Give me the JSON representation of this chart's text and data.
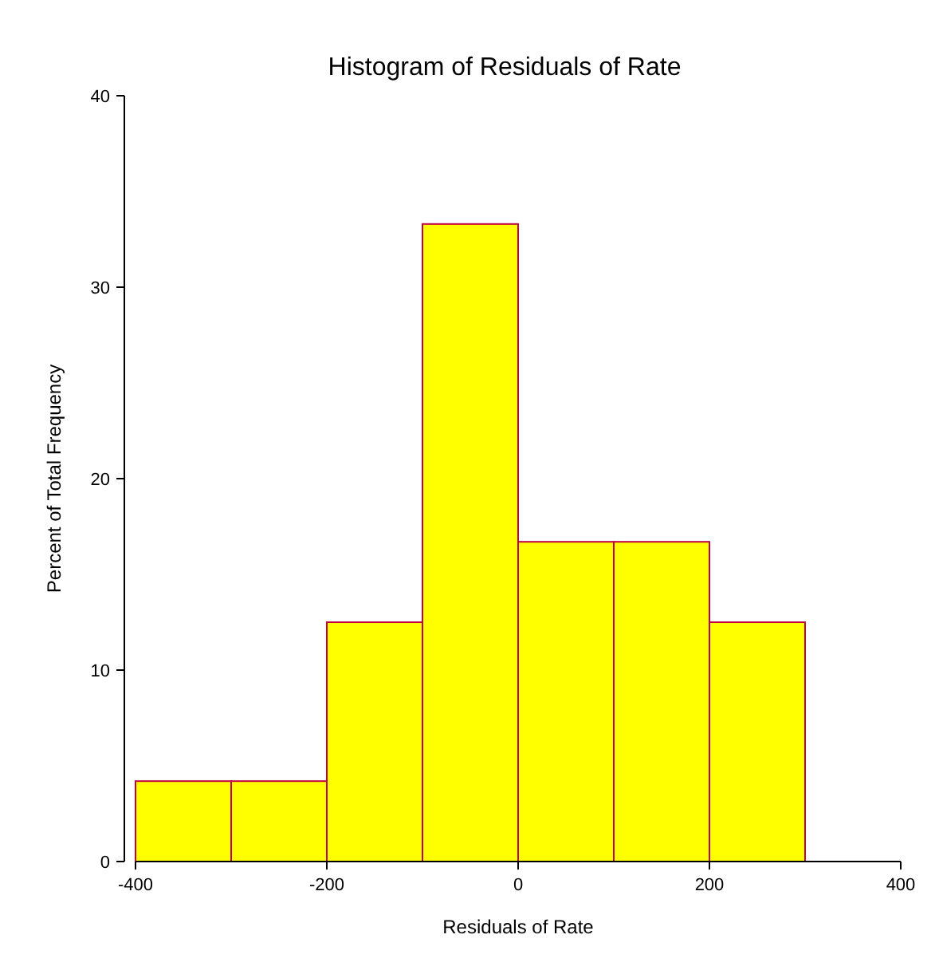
{
  "chart_data": {
    "type": "histogram",
    "title": "Histogram of Residuals of Rate",
    "xlabel": "Residuals of Rate",
    "ylabel": "Percent of Total Frequency",
    "bins": [
      -400,
      -300,
      -200,
      -100,
      0,
      100,
      200,
      300
    ],
    "values": [
      4.2,
      4.2,
      12.5,
      33.3,
      16.7,
      16.7,
      12.5
    ],
    "color": "#ffff00",
    "xlim": [
      -400,
      400
    ],
    "xticks": [
      -400,
      -200,
      0,
      200,
      400
    ],
    "ylim": [
      0,
      40
    ],
    "yticks": [
      0,
      10,
      20,
      30,
      40
    ],
    "grid": false
  }
}
